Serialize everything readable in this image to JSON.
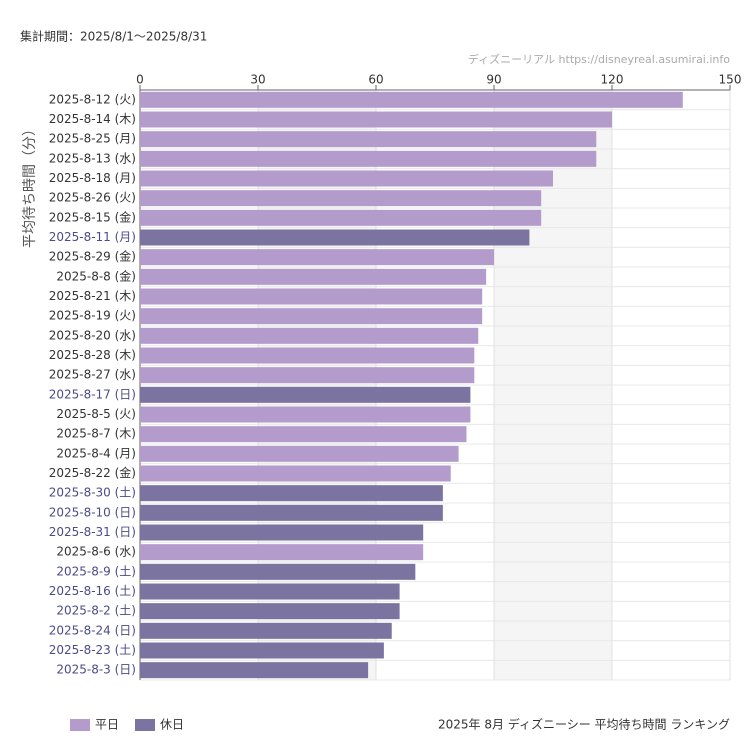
{
  "chart_data": {
    "type": "barh",
    "title": "2025年 8月 ディズニーシー 平均待ち時間 ランキング",
    "subtitle": "集計期間：2025/8/1〜2025/8/31",
    "source": "ディズニーリアル https://disneyreal.asumirai.info",
    "ylabel": "平均待ち時間（分）",
    "categories": [
      "2025-8-12 (火)",
      "2025-8-14 (木)",
      "2025-8-25 (月)",
      "2025-8-13 (水)",
      "2025-8-18 (月)",
      "2025-8-26 (火)",
      "2025-8-15 (金)",
      "2025-8-11 (月)",
      "2025-8-29 (金)",
      "2025-8-8 (金)",
      "2025-8-21 (木)",
      "2025-8-19 (火)",
      "2025-8-20 (水)",
      "2025-8-28 (木)",
      "2025-8-27 (水)",
      "2025-8-17 (日)",
      "2025-8-5 (火)",
      "2025-8-7 (木)",
      "2025-8-4 (月)",
      "2025-8-22 (金)",
      "2025-8-30 (土)",
      "2025-8-10 (日)",
      "2025-8-31 (日)",
      "2025-8-6 (水)",
      "2025-8-9 (土)",
      "2025-8-16 (土)",
      "2025-8-2 (土)",
      "2025-8-24 (日)",
      "2025-8-23 (土)",
      "2025-8-3 (日)"
    ],
    "series": [
      {
        "name": "平日",
        "color": "#b39ccb",
        "values": [
          138,
          120,
          116,
          116,
          105,
          102,
          102,
          null,
          90,
          88,
          87,
          87,
          86,
          85,
          85,
          null,
          84,
          83,
          81,
          79,
          null,
          null,
          null,
          72,
          null,
          null,
          null,
          null,
          null,
          null
        ]
      },
      {
        "name": "休日",
        "color": "#7b74a0",
        "values": [
          null,
          null,
          null,
          null,
          null,
          null,
          null,
          99,
          null,
          null,
          null,
          null,
          null,
          null,
          null,
          84,
          null,
          null,
          null,
          null,
          77,
          77,
          72,
          null,
          70,
          66,
          66,
          64,
          62,
          58
        ]
      }
    ],
    "xlim": [
      0,
      150
    ],
    "xticks": [
      0,
      30,
      60,
      90,
      120,
      150
    ],
    "grid": true
  }
}
